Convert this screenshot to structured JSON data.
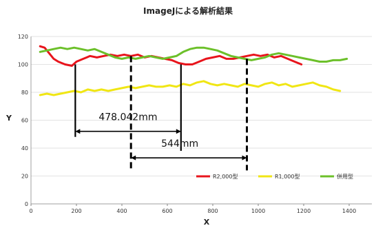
{
  "chart_data": {
    "type": "line",
    "title": "ImageJによる解析結果",
    "xlabel": "X",
    "ylabel": "Y",
    "xlim": [
      0,
      1500
    ],
    "ylim": [
      0,
      120
    ],
    "xticks": [
      0,
      200,
      400,
      600,
      800,
      1000,
      1200,
      1400
    ],
    "yticks": [
      0,
      20,
      40,
      60,
      80,
      100,
      120
    ],
    "grid": true,
    "legend_position": "bottom-right",
    "colors": {
      "red": "#e8141c",
      "yellow": "#f0e614",
      "green": "#6cc02a",
      "annotation": "#000000",
      "grid": "#d9d9d9"
    },
    "series": [
      {
        "name": "R2,000型",
        "color": "#e8141c",
        "x": [
          40,
          60,
          80,
          100,
          120,
          150,
          180,
          200,
          230,
          260,
          290,
          320,
          350,
          380,
          410,
          440,
          470,
          500,
          530,
          560,
          590,
          620,
          650,
          680,
          710,
          740,
          770,
          800,
          830,
          860,
          890,
          920,
          950,
          980,
          1010,
          1040,
          1070,
          1100,
          1130,
          1160,
          1190
        ],
        "y": [
          113,
          112,
          108,
          104,
          102,
          100,
          99,
          102,
          104,
          106,
          105,
          106,
          107,
          106,
          107,
          106,
          107,
          105,
          106,
          105,
          104,
          103,
          101,
          100,
          100,
          102,
          104,
          105,
          106,
          104,
          104,
          105,
          106,
          107,
          106,
          107,
          105,
          106,
          104,
          102,
          100
        ]
      },
      {
        "name": "R1,000型",
        "color": "#f0e614",
        "x": [
          40,
          70,
          100,
          130,
          160,
          190,
          220,
          250,
          280,
          310,
          340,
          370,
          400,
          430,
          460,
          490,
          520,
          550,
          580,
          610,
          640,
          670,
          700,
          730,
          760,
          790,
          820,
          850,
          880,
          910,
          940,
          970,
          1000,
          1030,
          1060,
          1090,
          1120,
          1150,
          1180,
          1210,
          1240,
          1270,
          1300,
          1330,
          1360
        ],
        "y": [
          78,
          79,
          78,
          79,
          80,
          81,
          80,
          82,
          81,
          82,
          81,
          82,
          83,
          84,
          83,
          84,
          85,
          84,
          84,
          85,
          84,
          86,
          85,
          87,
          88,
          86,
          85,
          86,
          85,
          84,
          86,
          85,
          84,
          86,
          87,
          85,
          86,
          84,
          85,
          86,
          87,
          85,
          84,
          82,
          81
        ]
      },
      {
        "name": "併用型",
        "color": "#6cc02a",
        "x": [
          40,
          70,
          100,
          130,
          160,
          190,
          220,
          250,
          280,
          310,
          340,
          370,
          400,
          430,
          460,
          490,
          520,
          550,
          580,
          610,
          640,
          670,
          700,
          730,
          760,
          790,
          820,
          850,
          880,
          910,
          940,
          970,
          1000,
          1030,
          1060,
          1090,
          1120,
          1150,
          1180,
          1210,
          1240,
          1270,
          1300,
          1330,
          1360,
          1390
        ],
        "y": [
          109,
          110,
          111,
          112,
          111,
          112,
          111,
          110,
          111,
          109,
          107,
          105,
          104,
          105,
          104,
          105,
          106,
          105,
          104,
          105,
          106,
          109,
          111,
          112,
          112,
          111,
          110,
          108,
          106,
          105,
          104,
          103,
          104,
          105,
          107,
          108,
          107,
          106,
          105,
          104,
          103,
          102,
          102,
          103,
          103,
          104
        ]
      }
    ],
    "annotations": {
      "solid_lines": [
        {
          "x": 195,
          "y_top": 100,
          "y_bottom": 48
        },
        {
          "x": 660,
          "y_top": 100,
          "y_bottom": 38
        }
      ],
      "dashed_lines": [
        {
          "x": 440,
          "y_top": 106,
          "y_bottom": 24
        },
        {
          "x": 950,
          "y_top": 104,
          "y_bottom": 24
        }
      ],
      "measurements": [
        {
          "label": "478.042mm",
          "x1": 195,
          "x2": 660,
          "y": 52,
          "label_x": 427,
          "label_y": 60
        },
        {
          "label": "544mm",
          "x1": 440,
          "x2": 950,
          "y": 33,
          "label_x": 655,
          "label_y": 41
        }
      ]
    }
  }
}
